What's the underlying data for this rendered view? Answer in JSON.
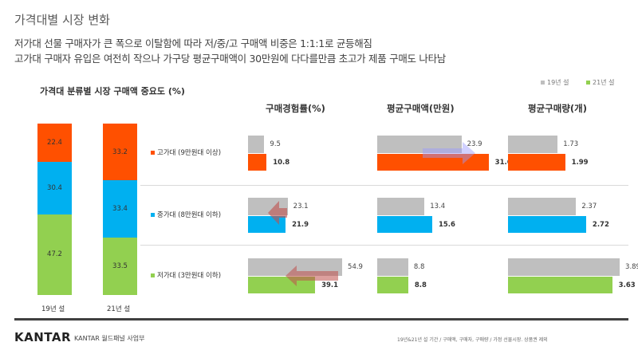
{
  "header": {
    "title": "가격대별 시장 변화",
    "subtitle_lines": [
      "저가대 선물 구매자가 큰 폭으로 이탈함에 따라 저/중/고 구매액 비중은 1:1:1로 균등해짐",
      "고가대 구매자 유입은 여전히 작으나 가구당 평균구매액이 30만원에 다다를만큼 초고가 제품 구매도 나타남"
    ]
  },
  "colors": {
    "high": "#FF5000",
    "mid": "#00B0F0",
    "low": "#92D050",
    "prev": "#BFBFBF"
  },
  "legend": {
    "prev": "19년 설",
    "curr": "21년 설"
  },
  "chart_data": [
    {
      "type": "bar",
      "stacked": true,
      "title": "가격대 분류별 시장 구매액 중요도 (%)",
      "categories": [
        "19년 설",
        "21년 설"
      ],
      "series": [
        {
          "name": "고가대",
          "values": [
            22.4,
            33.2
          ]
        },
        {
          "name": "중가대",
          "values": [
            30.4,
            33.4
          ]
        },
        {
          "name": "저가대",
          "values": [
            47.2,
            33.5
          ]
        }
      ]
    },
    {
      "type": "bar",
      "orientation": "horizontal",
      "title": "구매경험률(%)",
      "categories": [
        "고가대 (9만원대 이상)",
        "중가대 (8만원대 이하)",
        "저가대 (3만원대 이하)"
      ],
      "series": [
        {
          "name": "19년 설",
          "values": [
            9.5,
            23.1,
            54.9
          ]
        },
        {
          "name": "21년 설",
          "values": [
            10.8,
            21.9,
            39.1
          ]
        }
      ]
    },
    {
      "type": "bar",
      "orientation": "horizontal",
      "title": "평균구매액(만원)",
      "categories": [
        "고가대 (9만원대 이상)",
        "중가대 (8만원대 이하)",
        "저가대 (3만원대 이하)"
      ],
      "series": [
        {
          "name": "19년 설",
          "values": [
            23.9,
            13.4,
            8.8
          ]
        },
        {
          "name": "21년 설",
          "values": [
            31.6,
            15.6,
            8.8
          ]
        }
      ]
    },
    {
      "type": "bar",
      "orientation": "horizontal",
      "title": "평균구매량(개)",
      "categories": [
        "고가대 (9만원대 이상)",
        "중가대 (8만원대 이하)",
        "저가대 (3만원대 이하)"
      ],
      "series": [
        {
          "name": "19년 설",
          "values": [
            "1.73",
            "2.37",
            "3.89"
          ]
        },
        {
          "name": "21년 설",
          "values": [
            "1.99",
            "2.72",
            "3.63"
          ]
        }
      ]
    }
  ],
  "footer": {
    "logo": "KANTAR",
    "dept": "KANTAR 월드패널 사업부",
    "note": "19년&21년 설 기간 / 구매액, 구매자, 구매량 / 가정 선물시장. 상품권 제외"
  }
}
